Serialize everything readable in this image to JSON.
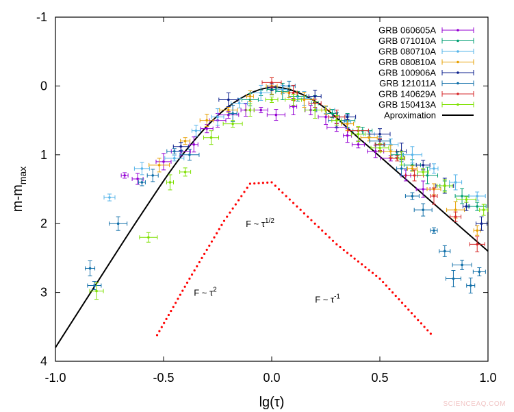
{
  "chart_data": {
    "type": "scatter",
    "title": "",
    "xlabel": "lg(τ)",
    "ylabel": {
      "main": "m-m",
      "sub": "max"
    },
    "xlim": [
      -1.0,
      1.0
    ],
    "ylim": [
      -1,
      4
    ],
    "y_inverted": true,
    "x_ticks": [
      "-1.0",
      "-0.5",
      "0.0",
      "0.5",
      "1.0"
    ],
    "y_ticks": [
      "-1",
      "0",
      "1",
      "2",
      "3",
      "4"
    ],
    "grid": false,
    "legend_position": "top-right",
    "series": [
      {
        "name": "GRB 060605A",
        "color": "#9400d3",
        "points": [
          [
            -0.68,
            1.3
          ],
          [
            -0.62,
            1.35
          ],
          [
            -0.5,
            1.1
          ],
          [
            -0.42,
            0.95
          ],
          [
            -0.36,
            0.85
          ],
          [
            -0.3,
            0.62
          ],
          [
            -0.25,
            0.5
          ],
          [
            -0.2,
            0.42
          ],
          [
            -0.12,
            0.35
          ],
          [
            -0.05,
            0.35
          ],
          [
            0.02,
            0.42
          ],
          [
            0.1,
            0.3
          ],
          [
            0.18,
            0.35
          ],
          [
            0.25,
            0.45
          ],
          [
            0.3,
            0.6
          ],
          [
            0.35,
            0.72
          ],
          [
            0.4,
            0.85
          ],
          [
            0.48,
            0.95
          ],
          [
            0.55,
            1.05
          ],
          [
            0.62,
            1.3
          ],
          [
            0.7,
            1.5
          ]
        ]
      },
      {
        "name": "GRB 071010A",
        "color": "#009e73",
        "points": [
          [
            -0.1,
            0.2
          ],
          [
            -0.05,
            0.1
          ],
          [
            0.0,
            0.05
          ],
          [
            0.05,
            0.08
          ],
          [
            0.12,
            0.15
          ],
          [
            0.2,
            0.25
          ],
          [
            0.28,
            0.4
          ],
          [
            0.35,
            0.5
          ],
          [
            0.42,
            0.65
          ],
          [
            0.5,
            0.85
          ],
          [
            0.58,
            1.0
          ],
          [
            0.65,
            1.15
          ],
          [
            0.72,
            1.3
          ],
          [
            0.8,
            1.45
          ],
          [
            0.88,
            1.6
          ],
          [
            0.95,
            1.75
          ]
        ]
      },
      {
        "name": "GRB 080710A",
        "color": "#56b4e9",
        "points": [
          [
            -0.75,
            1.62
          ],
          [
            -0.6,
            1.2
          ],
          [
            -0.45,
            1.05
          ],
          [
            -0.35,
            0.65
          ],
          [
            -0.25,
            0.45
          ],
          [
            -0.15,
            0.25
          ],
          [
            -0.05,
            0.1
          ],
          [
            0.05,
            0.05
          ],
          [
            0.15,
            0.18
          ],
          [
            0.25,
            0.35
          ],
          [
            0.35,
            0.52
          ],
          [
            0.45,
            0.7
          ],
          [
            0.55,
            0.85
          ],
          [
            0.65,
            1.0
          ],
          [
            0.75,
            1.2
          ],
          [
            0.85,
            1.4
          ],
          [
            0.95,
            1.6
          ]
        ]
      },
      {
        "name": "GRB 080810A",
        "color": "#e69f00",
        "points": [
          [
            -0.52,
            1.15
          ],
          [
            -0.4,
            0.8
          ],
          [
            -0.3,
            0.5
          ],
          [
            -0.2,
            0.35
          ],
          [
            -0.1,
            0.15
          ],
          [
            0.0,
            0.0
          ],
          [
            0.08,
            0.1
          ],
          [
            0.15,
            0.2
          ],
          [
            0.25,
            0.35
          ],
          [
            0.35,
            0.55
          ],
          [
            0.45,
            0.75
          ],
          [
            0.55,
            0.95
          ],
          [
            0.65,
            1.2
          ],
          [
            0.75,
            1.5
          ],
          [
            0.85,
            1.8
          ],
          [
            0.95,
            2.1
          ]
        ]
      },
      {
        "name": "GRB 100906A",
        "color": "#0b1f8c",
        "points": [
          [
            -0.42,
            0.88
          ],
          [
            -0.2,
            0.2
          ],
          [
            0.0,
            0.02
          ],
          [
            0.2,
            0.15
          ],
          [
            0.35,
            0.45
          ],
          [
            0.5,
            0.7
          ],
          [
            0.6,
            0.95
          ],
          [
            0.7,
            1.15
          ],
          [
            0.8,
            1.45
          ],
          [
            0.9,
            1.75
          ],
          [
            0.97,
            2.0
          ]
        ]
      },
      {
        "name": "GRB 121011A",
        "color": "#0f6ea8",
        "points": [
          [
            -0.84,
            2.65
          ],
          [
            -0.82,
            2.9
          ],
          [
            -0.71,
            2.0
          ],
          [
            -0.6,
            1.4
          ],
          [
            -0.55,
            1.3
          ],
          [
            -0.45,
            0.95
          ],
          [
            -0.38,
            1.0
          ],
          [
            -0.18,
            0.4
          ],
          [
            0.08,
            0.0
          ],
          [
            0.3,
            0.5
          ],
          [
            0.5,
            0.8
          ],
          [
            0.6,
            1.2
          ],
          [
            0.65,
            1.6
          ],
          [
            0.7,
            1.8
          ],
          [
            0.75,
            2.1
          ],
          [
            0.8,
            2.4
          ],
          [
            0.84,
            2.8
          ],
          [
            0.88,
            2.6
          ],
          [
            0.92,
            2.9
          ],
          [
            0.96,
            2.7
          ]
        ]
      },
      {
        "name": "GRB 140629A",
        "color": "#d62728",
        "points": [
          [
            0.0,
            -0.05
          ],
          [
            0.1,
            0.1
          ],
          [
            0.2,
            0.25
          ],
          [
            0.3,
            0.45
          ],
          [
            0.4,
            0.65
          ],
          [
            0.5,
            0.85
          ],
          [
            0.58,
            1.05
          ],
          [
            0.66,
            1.3
          ],
          [
            0.75,
            1.6
          ],
          [
            0.85,
            1.9
          ],
          [
            0.95,
            2.3
          ]
        ]
      },
      {
        "name": "GRB 150413A",
        "color": "#7ee000",
        "points": [
          [
            -0.81,
            2.98
          ],
          [
            -0.57,
            2.2
          ],
          [
            -0.47,
            1.4
          ],
          [
            -0.4,
            1.25
          ],
          [
            -0.28,
            0.75
          ],
          [
            -0.18,
            0.55
          ],
          [
            -0.1,
            0.35
          ],
          [
            0.0,
            0.2
          ],
          [
            0.1,
            0.2
          ],
          [
            0.2,
            0.35
          ],
          [
            0.3,
            0.5
          ],
          [
            0.4,
            0.7
          ],
          [
            0.5,
            0.9
          ],
          [
            0.6,
            1.05
          ],
          [
            0.7,
            1.25
          ],
          [
            0.8,
            1.45
          ],
          [
            0.9,
            1.65
          ],
          [
            0.98,
            1.8
          ]
        ]
      }
    ],
    "approximation": {
      "name": "Aproximation",
      "color": "#000000",
      "points": [
        [
          -1.0,
          3.8
        ],
        [
          -0.8,
          2.82
        ],
        [
          -0.6,
          1.85
        ],
        [
          -0.4,
          0.95
        ],
        [
          -0.2,
          0.3
        ],
        [
          0.0,
          0.02
        ],
        [
          0.2,
          0.22
        ],
        [
          0.4,
          0.75
        ],
        [
          0.6,
          1.3
        ],
        [
          0.8,
          1.85
        ],
        [
          1.0,
          2.4
        ]
      ]
    },
    "asymptotes": {
      "color": "#ff0000",
      "points": [
        [
          -0.53,
          3.62
        ],
        [
          -0.38,
          2.8
        ],
        [
          -0.22,
          1.96
        ],
        [
          -0.1,
          1.42
        ],
        [
          0.0,
          1.4
        ],
        [
          0.1,
          1.7
        ],
        [
          0.3,
          2.3
        ],
        [
          0.5,
          2.8
        ],
        [
          0.75,
          3.65
        ]
      ]
    },
    "annotations": [
      {
        "base": "F ~ τ",
        "sup": "1/2",
        "x": -0.12,
        "y": 2.05
      },
      {
        "base": "F ~ τ",
        "sup": "2",
        "x": -0.36,
        "y": 3.05
      },
      {
        "base": "F ~ τ",
        "sup": "-1",
        "x": 0.2,
        "y": 3.15
      }
    ]
  },
  "watermark": "SCIENCEAQ.COM"
}
